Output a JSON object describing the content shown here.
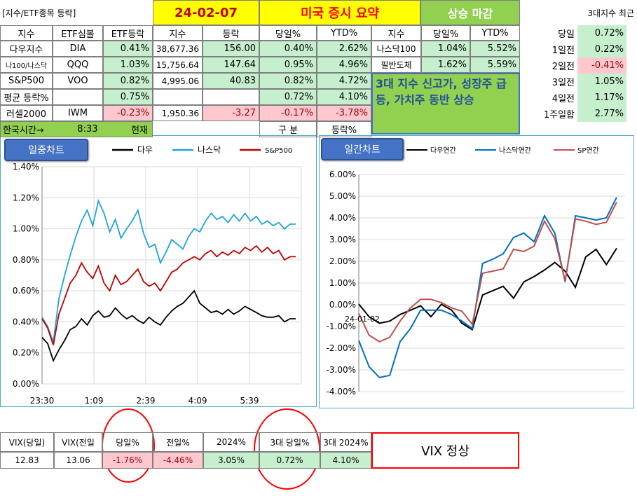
{
  "header": {
    "title": "[지수/ETF종목 등락]",
    "date": "24-02-07",
    "summary": "미국 증시 요약",
    "close_status": "상승 마감",
    "recent_label": "3대지수 최근"
  },
  "table_headers": {
    "index": "지수",
    "etf": "ETF심볼",
    "etf_change": "ETF등락",
    "level": "지수",
    "change": "등락",
    "day_pct": "당일%",
    "ytd_pct": "YTD%",
    "index2": "지수",
    "day_pct2": "당일%",
    "ytd_pct2": "YTD%"
  },
  "rows": [
    {
      "name": "다우지수",
      "etf": "DIA",
      "etf_change": "0.41%",
      "level": "38,677.36",
      "change": "156.00",
      "day": "0.40%",
      "ytd": "2.62%"
    },
    {
      "name": "나100/나스닥",
      "etf": "QQQ",
      "etf_change": "1.03%",
      "level": "15,756.64",
      "change": "147.64",
      "day": "0.95%",
      "ytd": "4.96%"
    },
    {
      "name": "S&P500",
      "etf": "VOO",
      "etf_change": "0.82%",
      "level": "4,995.06",
      "change": "40.83",
      "day": "0.82%",
      "ytd": "4.72%"
    },
    {
      "name": "평균 등락%",
      "etf": "",
      "etf_change": "0.75%",
      "level": "",
      "change": "",
      "day": "0.72%",
      "ytd": "4.10%"
    },
    {
      "name": "러셀2000",
      "etf": "IWM",
      "etf_change": "-0.23%",
      "level": "1,950.36",
      "change": "-3.27",
      "day": "-0.17%",
      "ytd": "-3.78%"
    }
  ],
  "korea_time": {
    "label": "한국시간→",
    "time": "8:33",
    "status": "현재"
  },
  "footer_labels": {
    "division": "구   분",
    "change_pct": "등락%"
  },
  "sector_rows": [
    {
      "name": "나스닥100",
      "day": "1.04%",
      "ytd": "5.52%"
    },
    {
      "name": "필반도체",
      "day": "1.62%",
      "ytd": "5.59%"
    }
  ],
  "headline": "3대 지수 신고가, 성장주 급등, 가치주 동반 상승",
  "recent_days": [
    {
      "label": "당일",
      "value": "0.72%"
    },
    {
      "label": "1일전",
      "value": "0.22%"
    },
    {
      "label": "2일전",
      "value": "-0.41%"
    },
    {
      "label": "3일전",
      "value": "1.05%"
    },
    {
      "label": "4일전",
      "value": "1.17%"
    },
    {
      "label": "1주일합",
      "value": "2.77%"
    }
  ],
  "vix": {
    "headers": [
      "VIX(당일)",
      "VIX(전일",
      "당일%",
      "전일%",
      "2024%",
      "3대 당일%",
      "3대 2024%"
    ],
    "values": [
      "12.83",
      "13.06",
      "-1.76%",
      "-4.46%",
      "3.05%",
      "0.72%",
      "4.10%"
    ],
    "status": "VIX 정상"
  },
  "chart_data": [
    {
      "type": "line",
      "title": "일중차트",
      "x_ticks": [
        "23:30",
        "1:09",
        "2:39",
        "4:09",
        "5:39"
      ],
      "y_ticks": [
        "0.00%",
        "0.20%",
        "0.40%",
        "0.60%",
        "0.80%",
        "1.00%",
        "1.20%",
        "1.40%"
      ],
      "ylim": [
        0,
        1.4
      ],
      "series": [
        {
          "name": "다우",
          "color": "#000000",
          "values": [
            0.3,
            0.26,
            0.15,
            0.22,
            0.28,
            0.35,
            0.37,
            0.42,
            0.38,
            0.44,
            0.47,
            0.43,
            0.44,
            0.49,
            0.45,
            0.42,
            0.44,
            0.41,
            0.39,
            0.43,
            0.4,
            0.38,
            0.43,
            0.47,
            0.5,
            0.52,
            0.56,
            0.6,
            0.52,
            0.49,
            0.46,
            0.47,
            0.45,
            0.48,
            0.45,
            0.47,
            0.5,
            0.48,
            0.46,
            0.44,
            0.43,
            0.43,
            0.44,
            0.4,
            0.42,
            0.42
          ]
        },
        {
          "name": "나스닥",
          "color": "#1fa3d9",
          "values": [
            0.43,
            0.37,
            0.27,
            0.55,
            0.7,
            0.83,
            0.95,
            1.05,
            1.12,
            1.02,
            1.18,
            1.1,
            0.98,
            1.06,
            0.94,
            1.0,
            1.05,
            1.12,
            0.97,
            0.88,
            0.9,
            0.78,
            0.85,
            0.93,
            0.9,
            0.87,
            0.95,
            1.0,
            0.98,
            1.05,
            1.1,
            1.06,
            1.08,
            1.04,
            1.09,
            1.05,
            1.1,
            1.05,
            1.08,
            1.03,
            1.05,
            1.02,
            1.04,
            1.0,
            1.03,
            1.03
          ]
        },
        {
          "name": "S&P500",
          "color": "#c00000",
          "values": [
            0.42,
            0.36,
            0.25,
            0.45,
            0.55,
            0.65,
            0.7,
            0.78,
            0.72,
            0.68,
            0.76,
            0.65,
            0.6,
            0.7,
            0.64,
            0.66,
            0.7,
            0.74,
            0.66,
            0.63,
            0.65,
            0.6,
            0.66,
            0.72,
            0.74,
            0.78,
            0.8,
            0.82,
            0.8,
            0.84,
            0.86,
            0.82,
            0.85,
            0.83,
            0.86,
            0.84,
            0.88,
            0.86,
            0.89,
            0.85,
            0.88,
            0.84,
            0.86,
            0.8,
            0.82,
            0.82
          ]
        }
      ]
    },
    {
      "type": "line",
      "title": "일간차트",
      "x_label_shown": "24-01-02",
      "y_ticks": [
        "-4.00%",
        "-3.00%",
        "-2.00%",
        "-1.00%",
        "0.00%",
        "1.00%",
        "2.00%",
        "3.00%",
        "4.00%",
        "5.00%",
        "6.00%"
      ],
      "ylim": [
        -4,
        6
      ],
      "series": [
        {
          "name": "다우연간",
          "color": "#000000",
          "values": [
            0.03,
            -0.55,
            -0.85,
            -0.75,
            -0.45,
            -0.25,
            -0.05,
            -0.55,
            0.02,
            -0.25,
            -0.85,
            -1.15,
            0.45,
            0.65,
            0.85,
            0.3,
            1.05,
            1.3,
            1.6,
            1.95,
            1.55,
            0.8,
            2.2,
            2.55,
            1.85,
            2.6
          ]
        },
        {
          "name": "나스닥연간",
          "color": "#0070c0",
          "values": [
            -1.65,
            -2.85,
            -3.35,
            -3.25,
            -1.7,
            -1.1,
            -0.25,
            -0.25,
            -0.25,
            -0.45,
            -0.75,
            -1.1,
            1.9,
            2.1,
            2.35,
            3.1,
            3.3,
            2.9,
            4.1,
            3.3,
            1.05,
            4.1,
            4.0,
            3.9,
            4.0,
            4.95
          ]
        },
        {
          "name": "SP연간",
          "color": "#c0504d",
          "values": [
            -0.4,
            -1.4,
            -1.7,
            -1.5,
            -0.75,
            -0.15,
            0.25,
            0.25,
            0.1,
            -0.15,
            -0.3,
            -0.9,
            1.45,
            1.55,
            1.65,
            2.55,
            2.45,
            2.7,
            3.85,
            3.05,
            1.1,
            3.95,
            3.85,
            3.7,
            3.8,
            4.72
          ]
        }
      ]
    }
  ]
}
